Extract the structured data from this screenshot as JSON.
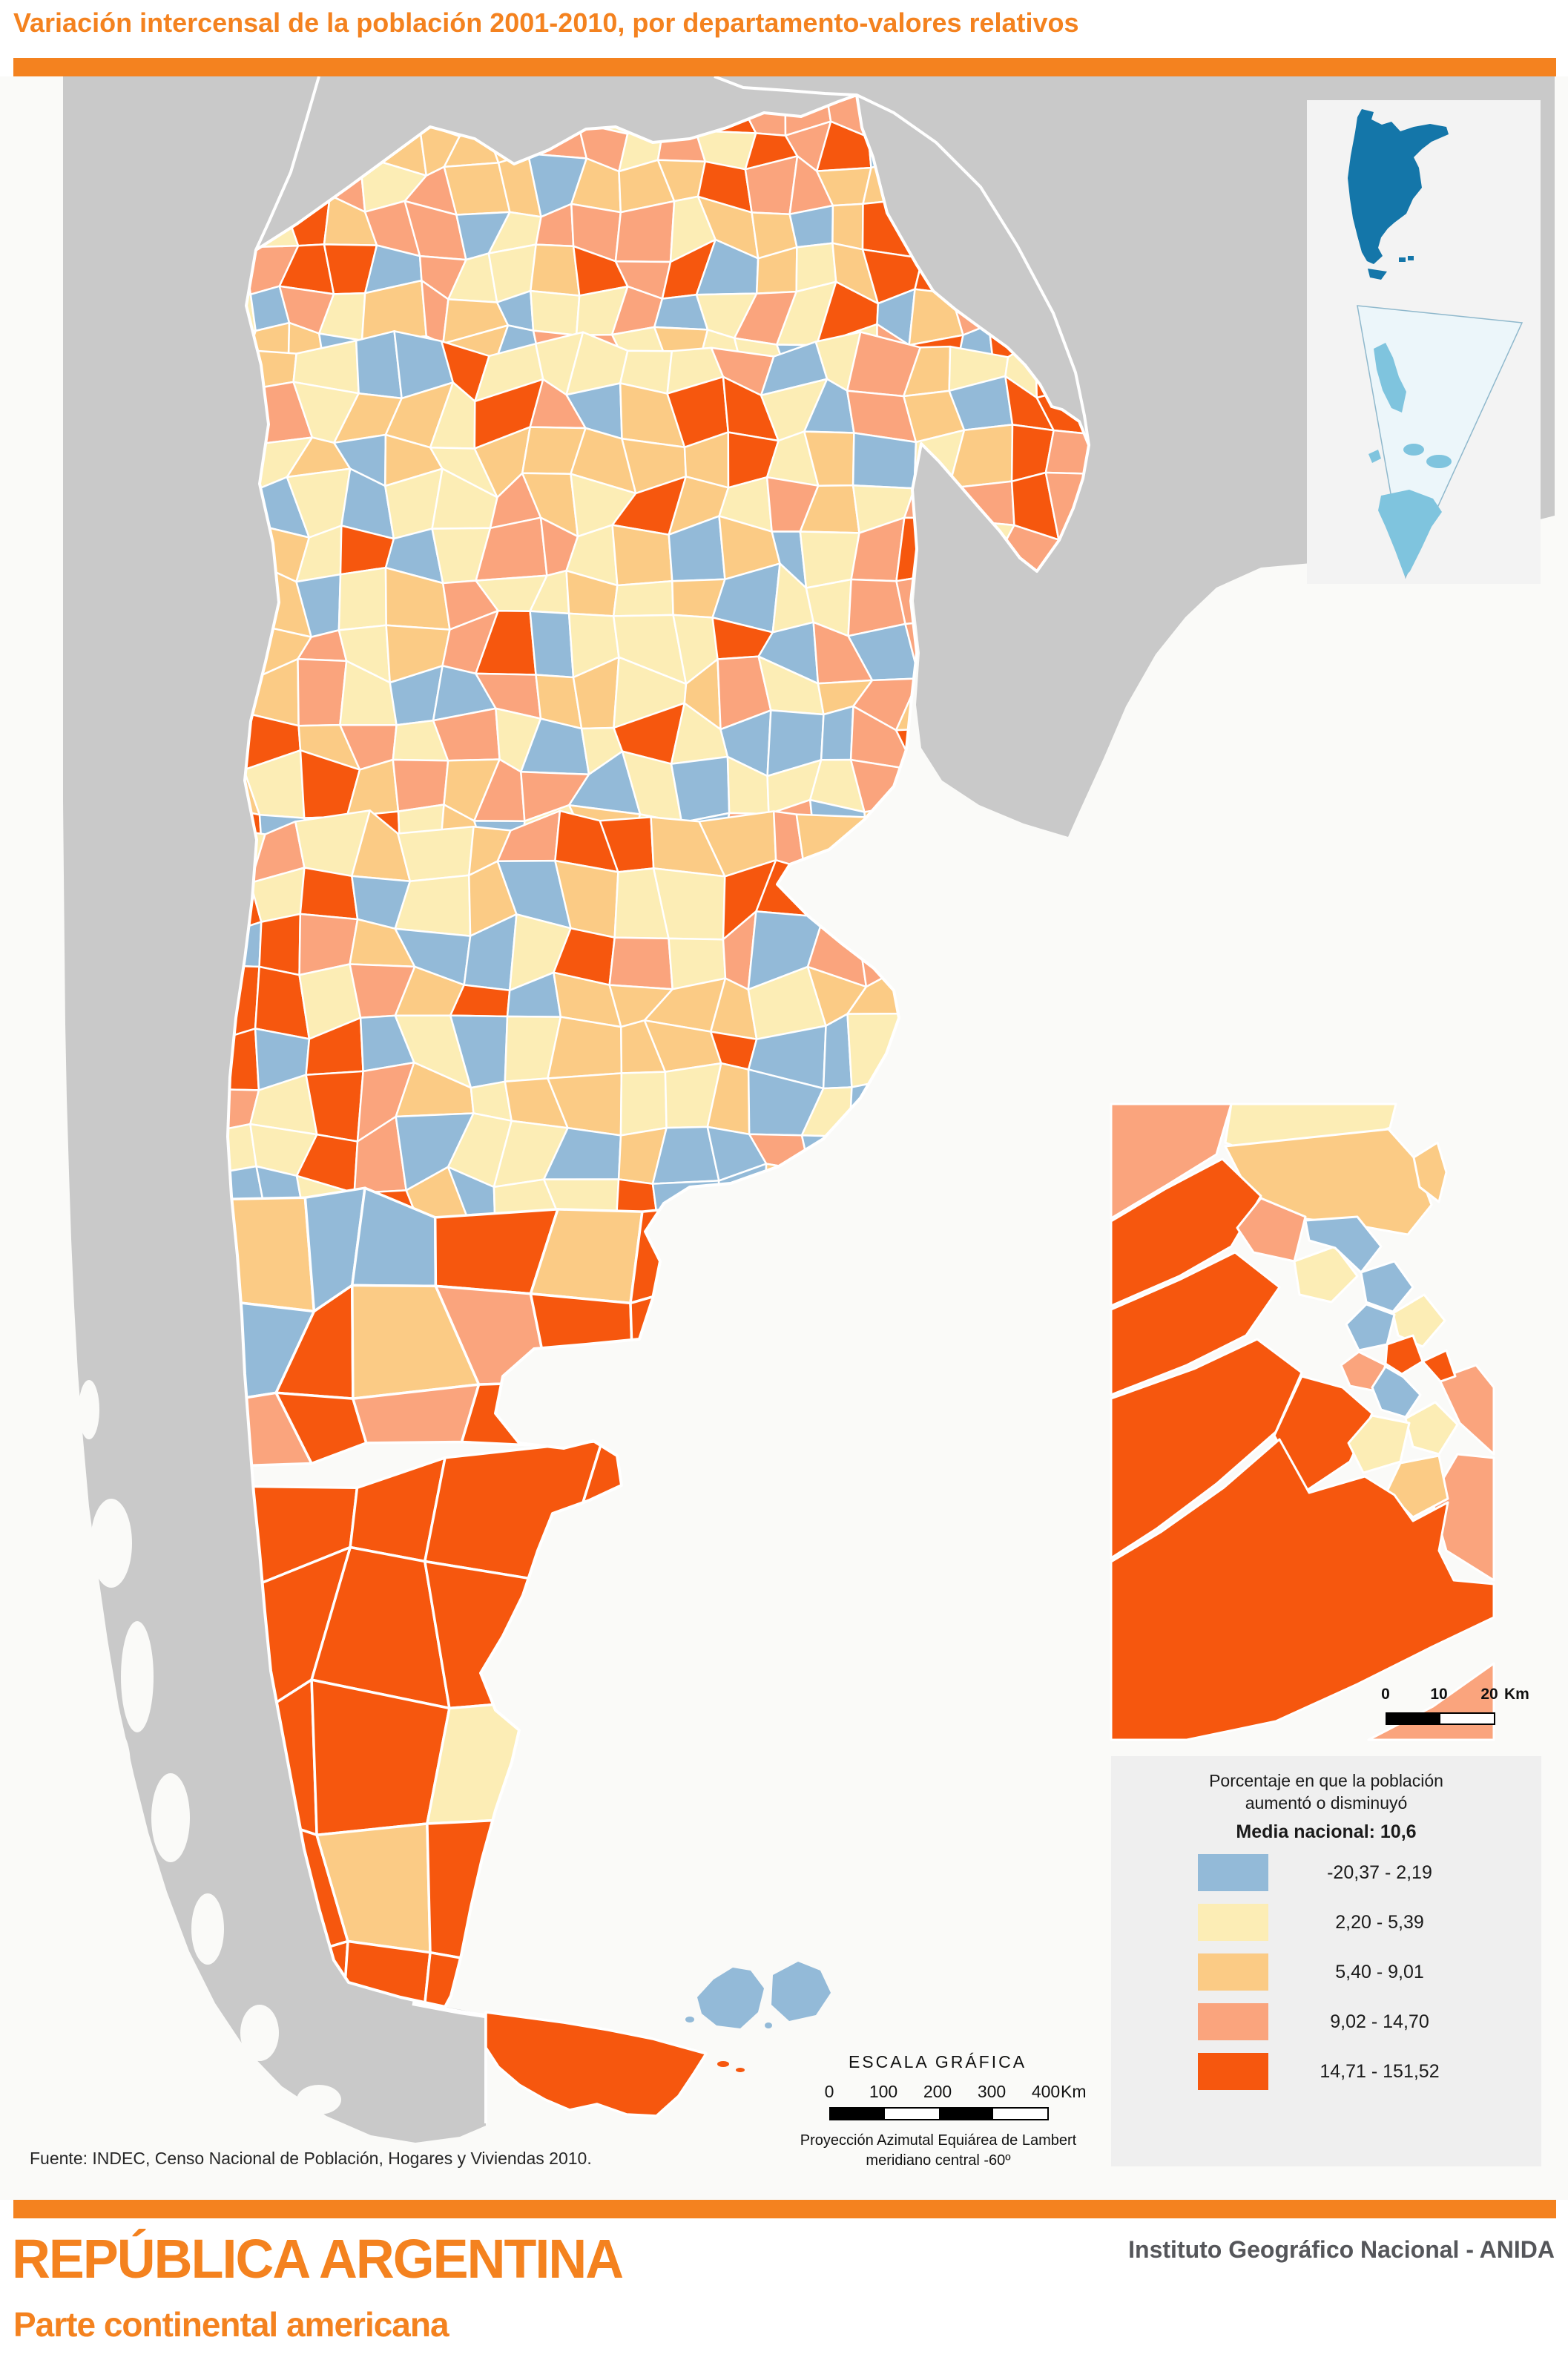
{
  "page": {
    "title": "Variación intercensal de la población 2001-2010, por departamento-valores relativos",
    "accent_color": "#F4821F",
    "source": "Fuente: INDEC, Censo Nacional de Población, Hogares y Viviendas 2010.",
    "footer": {
      "country_title": "REPÚBLICA ARGENTINA",
      "subtitle": "Parte continental americana",
      "agency": "Instituto Geográfico Nacional - ANIDA"
    }
  },
  "map": {
    "legend": {
      "title_line1": "Porcentaje en que la población",
      "title_line2": "aumentó o disminuyó",
      "national_mean_label": "Media nacional: 10,6",
      "classes": [
        {
          "label": "-20,37 - 2,19",
          "color": "#93BAD8"
        },
        {
          "label": "2,20 - 5,39",
          "color": "#FCEDB5"
        },
        {
          "label": "5,40 - 9,01",
          "color": "#FBCB85"
        },
        {
          "label": "9,02 - 14,70",
          "color": "#FAA47D"
        },
        {
          "label": "14,71 - 151,52",
          "color": "#F6570E"
        }
      ]
    },
    "scale": {
      "title": "ESCALA GRÁFICA",
      "ticks": [
        "0",
        "100",
        "200",
        "300",
        "400"
      ],
      "unit": "Km"
    },
    "inset_scale": {
      "ticks": [
        "0",
        "10",
        "20"
      ],
      "unit": "Km"
    },
    "projection_line1": "Proyección Azimutal Equiárea de Lambert",
    "projection_line2": "meridiano central -60º",
    "colors": {
      "neighbor_gray": "#C9C9C9",
      "ocean": "#FAFAF8",
      "country_border": "#FFFFFF",
      "locator_panel": "#F3F3F3",
      "locator_country_blue": "#1476A9",
      "locator_antarctic_blue": "#7FC4DE",
      "locator_antarctic_bg": "#ECF6FA"
    }
  }
}
